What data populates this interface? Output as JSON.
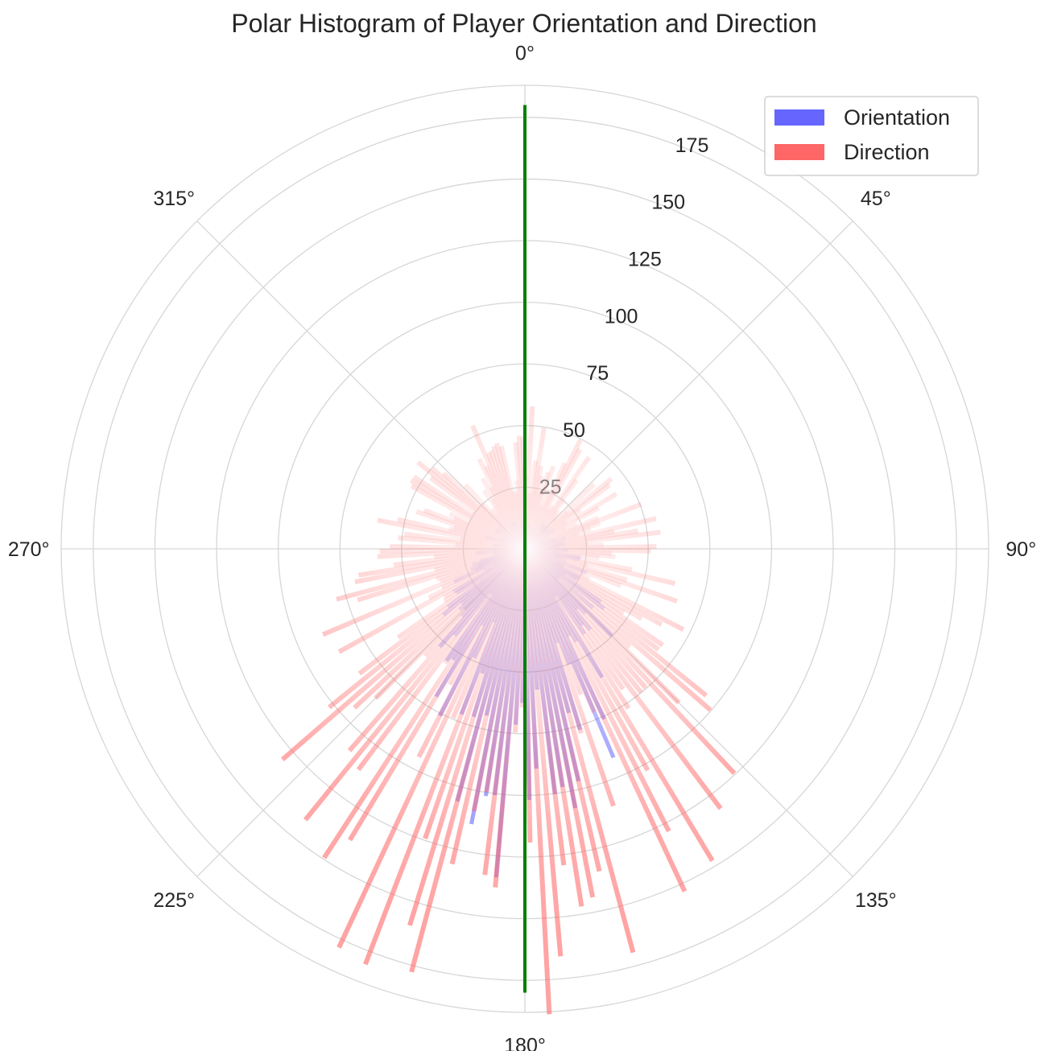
{
  "chart_data": {
    "type": "polar-histogram",
    "title": "Polar Histogram of Player Orientation and Direction",
    "theta_zero": "N",
    "theta_direction": "clockwise",
    "angle_ticks": [
      "0°",
      "45°",
      "90°",
      "135°",
      "180°",
      "225°",
      "270°",
      "315°"
    ],
    "angle_tick_values": [
      0,
      45,
      90,
      135,
      180,
      225,
      270,
      315
    ],
    "radial_ticks": [
      "25",
      "50",
      "75",
      "100",
      "125",
      "150",
      "175"
    ],
    "radial_tick_values": [
      25,
      50,
      75,
      100,
      125,
      150,
      175
    ],
    "rlim": [
      0,
      188
    ],
    "grid": true,
    "legend_position": "top-right",
    "bin_width_deg": 2,
    "series": [
      {
        "name": "Orientation",
        "color": "#6666ff",
        "alpha": 0.6,
        "profile": [
          [
            0,
            8
          ],
          [
            30,
            9
          ],
          [
            60,
            11
          ],
          [
            90,
            14
          ],
          [
            110,
            20
          ],
          [
            125,
            28
          ],
          [
            140,
            40
          ],
          [
            155,
            62
          ],
          [
            165,
            85
          ],
          [
            175,
            100
          ],
          [
            180,
            102
          ],
          [
            185,
            100
          ],
          [
            195,
            85
          ],
          [
            205,
            62
          ],
          [
            220,
            40
          ],
          [
            235,
            28
          ],
          [
            250,
            20
          ],
          [
            270,
            14
          ],
          [
            300,
            11
          ],
          [
            330,
            9
          ],
          [
            360,
            8
          ]
        ]
      },
      {
        "name": "Direction",
        "color": "#ff6666",
        "alpha": 0.6,
        "profile": [
          [
            0,
            42
          ],
          [
            20,
            40
          ],
          [
            45,
            38
          ],
          [
            70,
            40
          ],
          [
            90,
            44
          ],
          [
            105,
            46
          ],
          [
            115,
            52
          ],
          [
            125,
            68
          ],
          [
            140,
            96
          ],
          [
            155,
            120
          ],
          [
            165,
            138
          ],
          [
            170,
            148
          ],
          [
            180,
            142
          ],
          [
            190,
            146
          ],
          [
            200,
            140
          ],
          [
            210,
            125
          ],
          [
            225,
            105
          ],
          [
            240,
            78
          ],
          [
            255,
            62
          ],
          [
            270,
            50
          ],
          [
            290,
            42
          ],
          [
            315,
            40
          ],
          [
            340,
            41
          ],
          [
            360,
            42
          ]
        ]
      }
    ],
    "reference_line": {
      "name": "mean-direction",
      "color": "#008000",
      "angles_deg": [
        0,
        180
      ],
      "r": 180
    }
  }
}
